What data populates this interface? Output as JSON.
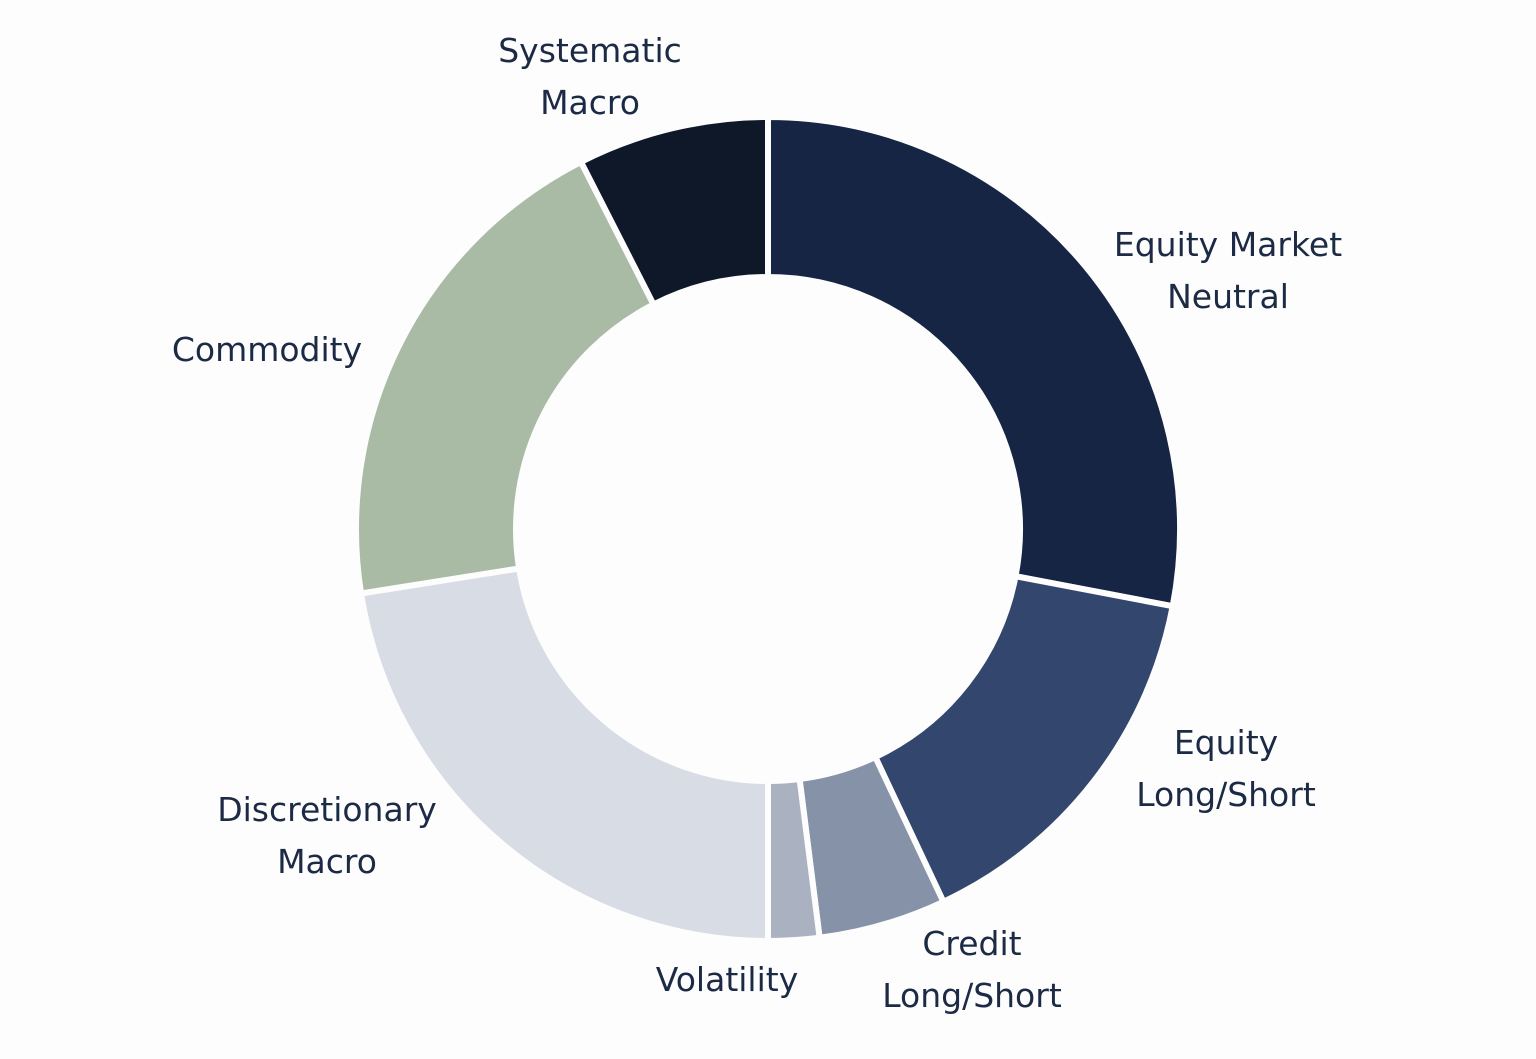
{
  "chart_data": {
    "type": "donut",
    "categories": [
      "Equity Market Neutral",
      "Equity Long/Short",
      "Credit Long/Short",
      "Volatility",
      "Discretionary Macro",
      "Commodity",
      "Systematic Macro"
    ],
    "values": [
      28,
      15,
      5,
      2,
      22.5,
      20,
      7.5
    ],
    "colors": [
      "#162544",
      "#33466d",
      "#8592a8",
      "#aab2c2",
      "#d8dce5",
      "#a9bba5",
      "#0e1829"
    ]
  }
}
